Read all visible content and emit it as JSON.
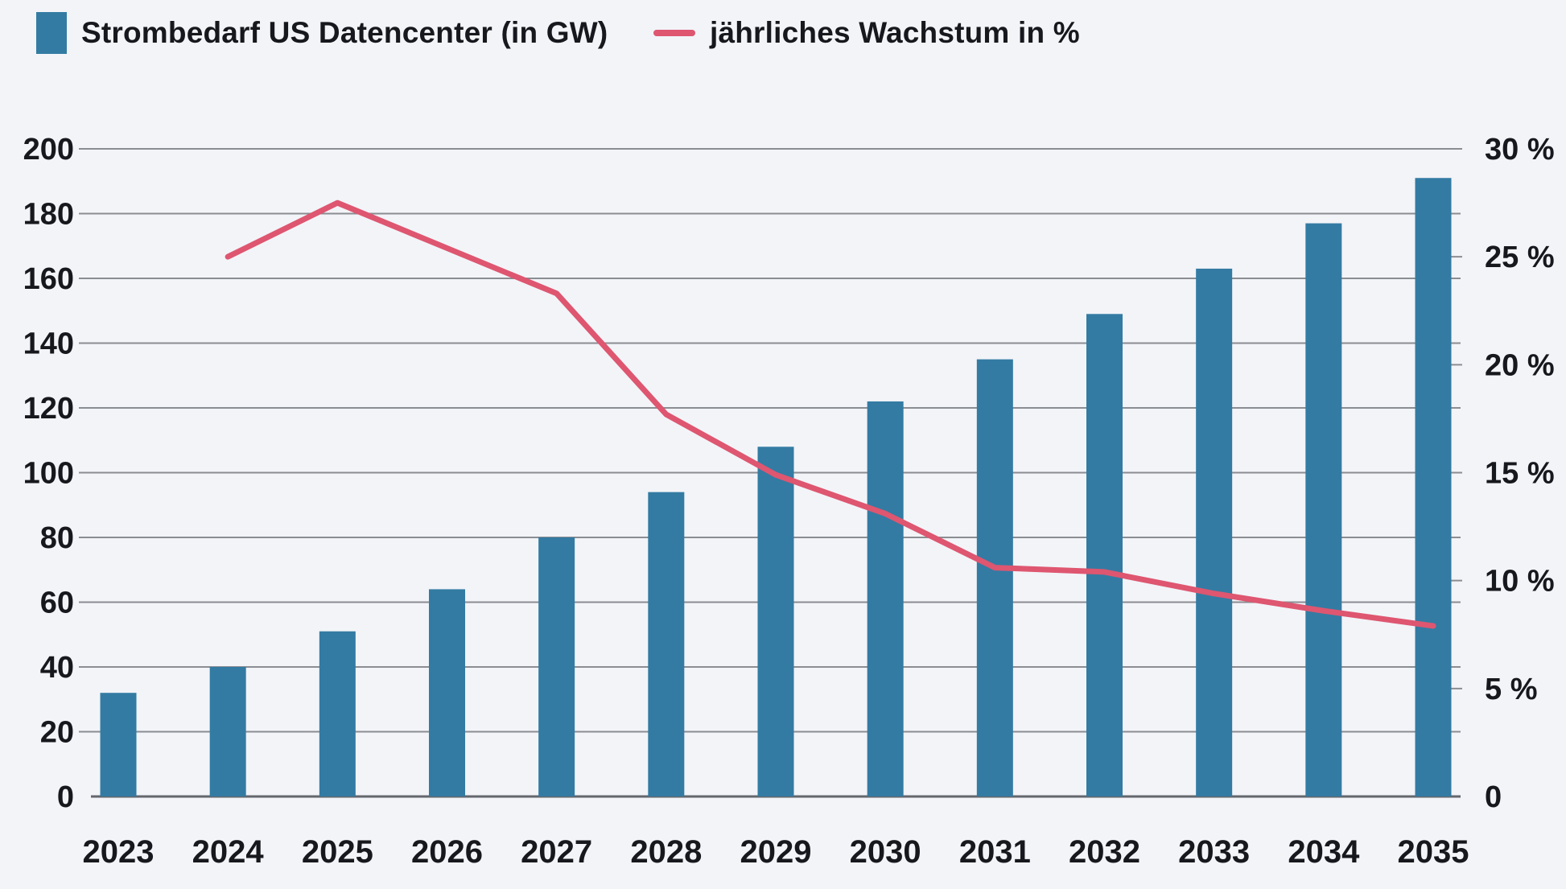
{
  "legend": {
    "items": [
      {
        "label": "Strombedarf US Datencenter (in GW)",
        "marker": "square"
      },
      {
        "label": "jährliches Wachstum in %",
        "marker": "line"
      }
    ]
  },
  "chart_data": {
    "type": "bar",
    "combo": "bar+line",
    "title": "",
    "categories": [
      "2023",
      "2024",
      "2025",
      "2026",
      "2027",
      "2028",
      "2029",
      "2030",
      "2031",
      "2032",
      "2033",
      "2034",
      "2035"
    ],
    "series": [
      {
        "name": "Strombedarf US Datencenter (in GW)",
        "kind": "bar",
        "axis": "left",
        "color": "#337BA3",
        "values": [
          32,
          40,
          51,
          64,
          80,
          94,
          108,
          122,
          135,
          149,
          163,
          177,
          191
        ]
      },
      {
        "name": "jährliches Wachstum in %",
        "kind": "line",
        "axis": "right",
        "color": "#DE5670",
        "values": [
          null,
          25,
          27.5,
          25.4,
          23.3,
          17.7,
          14.9,
          13.1,
          10.6,
          10.4,
          9.4,
          8.6,
          7.9
        ]
      }
    ],
    "axes": {
      "left": {
        "min": 0,
        "max": 200,
        "step": 20,
        "tick_labels": [
          "0",
          "20",
          "40",
          "60",
          "80",
          "100",
          "120",
          "140",
          "160",
          "180",
          "200"
        ]
      },
      "right": {
        "min": 0,
        "max": 30,
        "step": 5,
        "tick_labels": [
          "0",
          "5 %",
          "10 %",
          "15 %",
          "20 %",
          "25 %",
          "30 %"
        ]
      }
    },
    "grid": true,
    "legend_position": "top"
  },
  "style": {
    "background": "#F2F4F8",
    "bar_color": "#337BA3",
    "line_color": "#DE5670",
    "grid_color": "#8A8D92",
    "axis_line_color": "#63666B",
    "text_color": "#16181D"
  }
}
